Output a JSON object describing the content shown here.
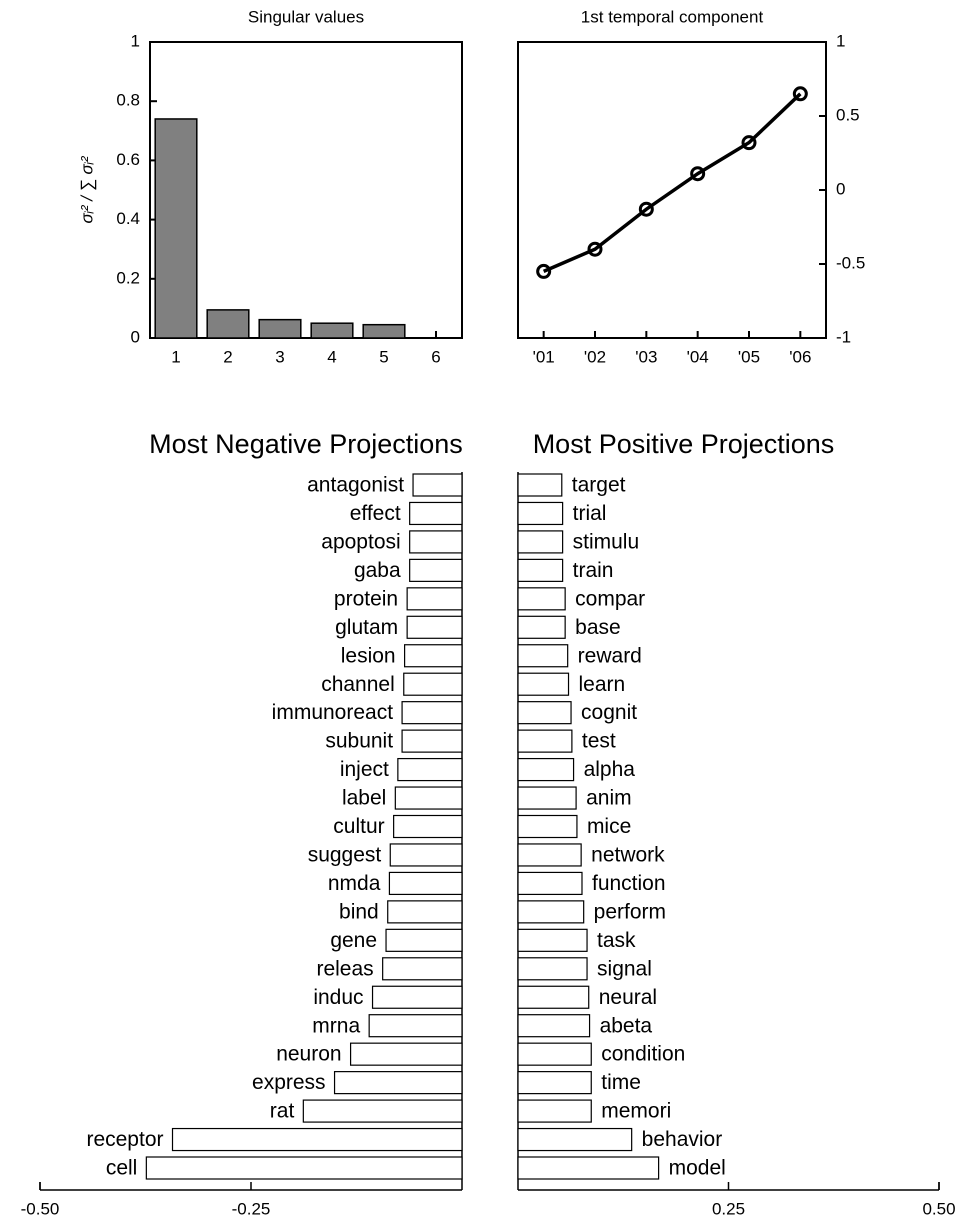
{
  "chart_data": [
    {
      "type": "bar",
      "title": "Singular values",
      "y_label": "σᵢ² / ∑ σᵢ²",
      "categories": [
        "1",
        "2",
        "3",
        "4",
        "5",
        "6"
      ],
      "values": [
        0.74,
        0.095,
        0.062,
        0.05,
        0.045,
        0
      ],
      "color": "#808080",
      "ylim": [
        0,
        1
      ],
      "yticks": [
        0,
        0.2,
        0.4,
        0.6,
        0.8,
        1
      ]
    },
    {
      "type": "line",
      "title": "1st temporal component",
      "categories": [
        "'01",
        "'02",
        "'03",
        "'04",
        "'05",
        "'06"
      ],
      "values": [
        -0.55,
        -0.4,
        -0.13,
        0.11,
        0.32,
        0.65
      ],
      "color": "#000000",
      "ylim": [
        -1,
        1
      ],
      "yticks": [
        -1,
        -0.5,
        0,
        0.5,
        1
      ],
      "y_axis_side": "right"
    },
    {
      "type": "barh",
      "title": "Most Negative Projections",
      "categories": [
        "antagonist",
        "effect",
        "apoptosi",
        "gaba",
        "protein",
        "glutam",
        "lesion",
        "channel",
        "immunoreact",
        "subunit",
        "inject",
        "label",
        "cultur",
        "suggest",
        "nmda",
        "bind",
        "gene",
        "releas",
        "induc",
        "mrna",
        "neuron",
        "express",
        "rat",
        "receptor",
        "cell"
      ],
      "values": [
        -0.058,
        -0.062,
        -0.062,
        -0.062,
        -0.065,
        -0.065,
        -0.068,
        -0.069,
        -0.071,
        -0.071,
        -0.076,
        -0.079,
        -0.081,
        -0.085,
        -0.086,
        -0.088,
        -0.09,
        -0.094,
        -0.106,
        -0.11,
        -0.132,
        -0.151,
        -0.188,
        -0.343,
        -0.374
      ],
      "color": "#ffffff",
      "xlim": [
        -0.5,
        0
      ],
      "xticks": [
        {
          "value": -0.5,
          "label": "-0.50"
        },
        {
          "value": -0.25,
          "label": "-0.25"
        }
      ]
    },
    {
      "type": "barh",
      "title": "Most Positive Projections",
      "categories": [
        "target",
        "trial",
        "stimulu",
        "train",
        "compar",
        "base",
        "reward",
        "learn",
        "cognit",
        "test",
        "alpha",
        "anim",
        "mice",
        "network",
        "function",
        "perform",
        "task",
        "signal",
        "neural",
        "abeta",
        "condition",
        "time",
        "memori",
        "behavior",
        "model"
      ],
      "values": [
        0.052,
        0.053,
        0.053,
        0.053,
        0.056,
        0.056,
        0.059,
        0.06,
        0.063,
        0.064,
        0.066,
        0.069,
        0.07,
        0.075,
        0.076,
        0.078,
        0.082,
        0.082,
        0.084,
        0.085,
        0.087,
        0.087,
        0.087,
        0.135,
        0.167
      ],
      "color": "#ffffff",
      "xlim": [
        0,
        0.5
      ],
      "xticks": [
        {
          "value": 0.25,
          "label": "0.25"
        },
        {
          "value": 0.5,
          "label": "0.50"
        }
      ]
    }
  ]
}
